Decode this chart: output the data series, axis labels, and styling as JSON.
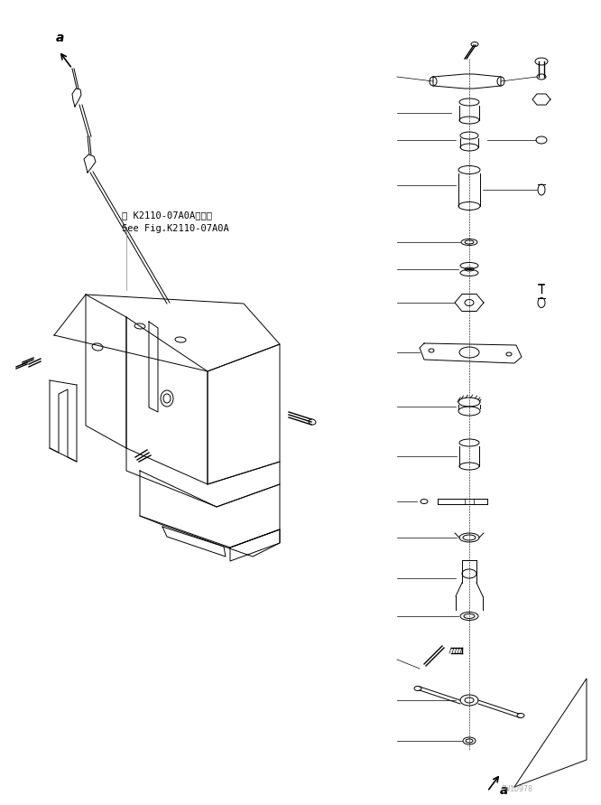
{
  "bg_color": "#ffffff",
  "line_color": "#000000",
  "fig_width": 6.66,
  "fig_height": 8.91,
  "dpi": 100,
  "watermark": "PW1D978",
  "ref_text_line1": "第 K2110-07A0A図参照",
  "ref_text_line2": "See Fig.K2110-07A0A",
  "arrow_label": "a"
}
